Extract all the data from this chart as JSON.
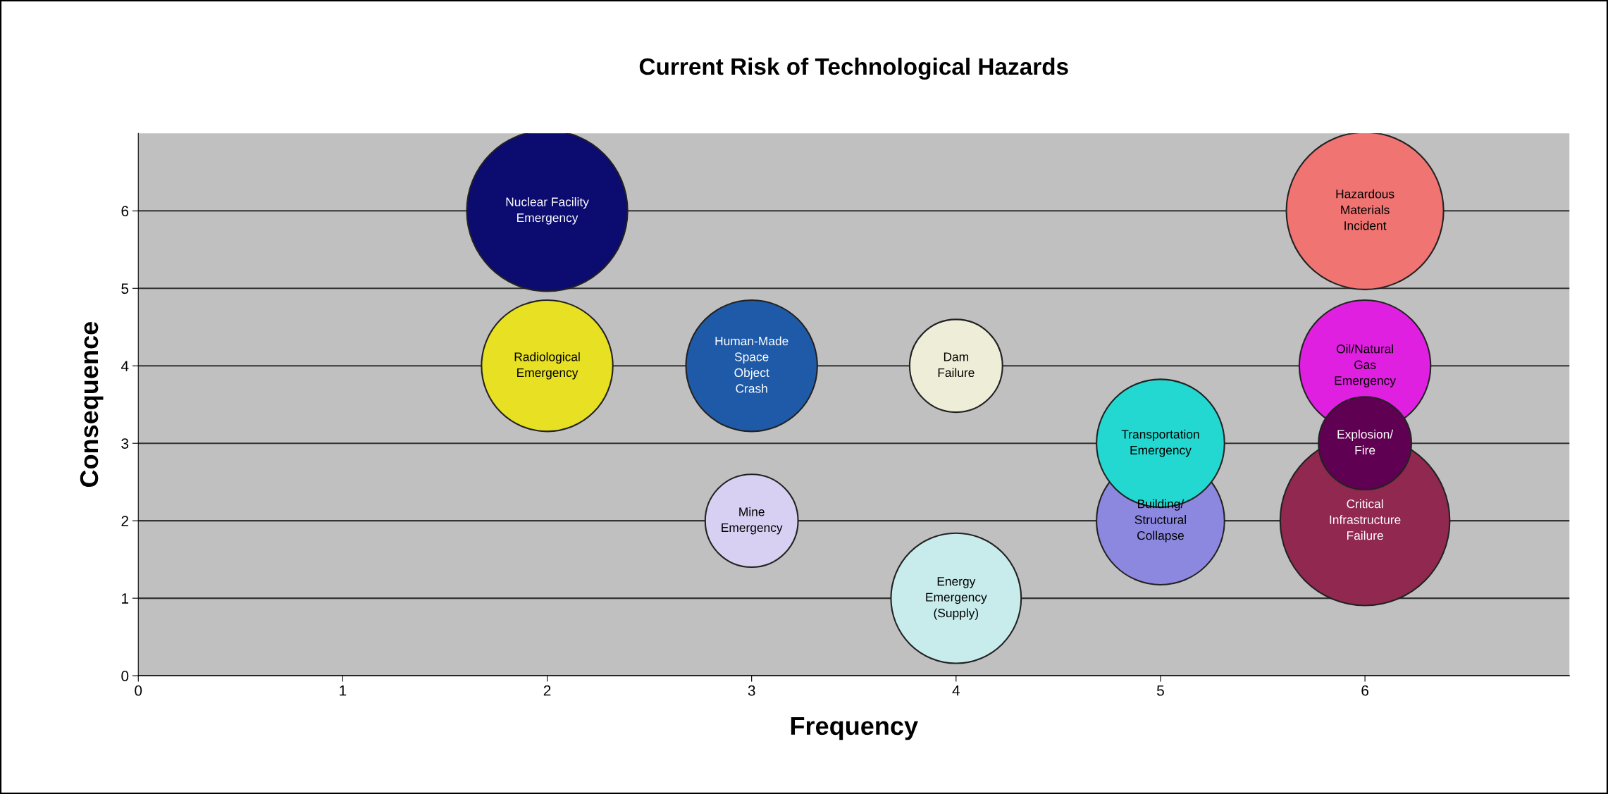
{
  "chart_data": {
    "type": "bubble",
    "title": "Current Risk of Technological Hazards",
    "xlabel": "Frequency",
    "ylabel": "Consequence",
    "xlim": [
      0,
      7
    ],
    "xticks": [
      0,
      1,
      2,
      3,
      4,
      5,
      6
    ],
    "ylim": [
      0,
      7
    ],
    "yticks": [
      0,
      1,
      2,
      3,
      4,
      5,
      6
    ],
    "grid": "y",
    "legend": false,
    "series": [
      {
        "name": "Nuclear Facility\nEmergency",
        "color": "#0b0b70",
        "x": [
          2
        ],
        "values": [
          6
        ],
        "sizes": [
          0.9
        ]
      },
      {
        "name": "Hazardous\nMaterials\nIncident",
        "color": "#ef7472",
        "x": [
          6
        ],
        "values": [
          6
        ],
        "sizes": [
          0.86
        ]
      },
      {
        "name": "Radiological\nEmergency",
        "color": "#e8e022",
        "x": [
          2
        ],
        "values": [
          4
        ],
        "sizes": [
          0.6
        ]
      },
      {
        "name": "Human-Made\nSpace\nObject\nCrash",
        "color": "#1f5aa8",
        "x": [
          3
        ],
        "values": [
          4
        ],
        "sizes": [
          0.6
        ]
      },
      {
        "name": "Dam\nFailure",
        "color": "#eeeed8",
        "x": [
          4
        ],
        "values": [
          4
        ],
        "sizes": [
          0.3
        ]
      },
      {
        "name": "Oil/Natural\nGas\nEmergency",
        "color": "#e020e0",
        "x": [
          6
        ],
        "values": [
          4
        ],
        "sizes": [
          0.6
        ]
      },
      {
        "name": "Building/\nStructural\nCollapse",
        "color": "#8c88e0",
        "x": [
          5
        ],
        "values": [
          2
        ],
        "sizes": [
          0.57
        ]
      },
      {
        "name": "Transportation\nEmergency",
        "color": "#22d8d0",
        "x": [
          5
        ],
        "values": [
          3
        ],
        "sizes": [
          0.57
        ]
      },
      {
        "name": "Critical\nInfrastructure\nFailure",
        "color": "#902850",
        "x": [
          6
        ],
        "values": [
          2
        ],
        "sizes": [
          1
        ]
      },
      {
        "name": "Explosion/\nFire",
        "color": "#600052",
        "x": [
          6
        ],
        "values": [
          3
        ],
        "sizes": [
          0.3
        ]
      },
      {
        "name": "Mine\nEmergency",
        "color": "#d8d0f2",
        "x": [
          3
        ],
        "values": [
          2
        ],
        "sizes": [
          0.3
        ]
      },
      {
        "name": "Energy\nEmergency\n(Supply)",
        "color": "#c8ecec",
        "x": [
          4
        ],
        "values": [
          1
        ],
        "sizes": [
          0.59
        ]
      }
    ]
  }
}
